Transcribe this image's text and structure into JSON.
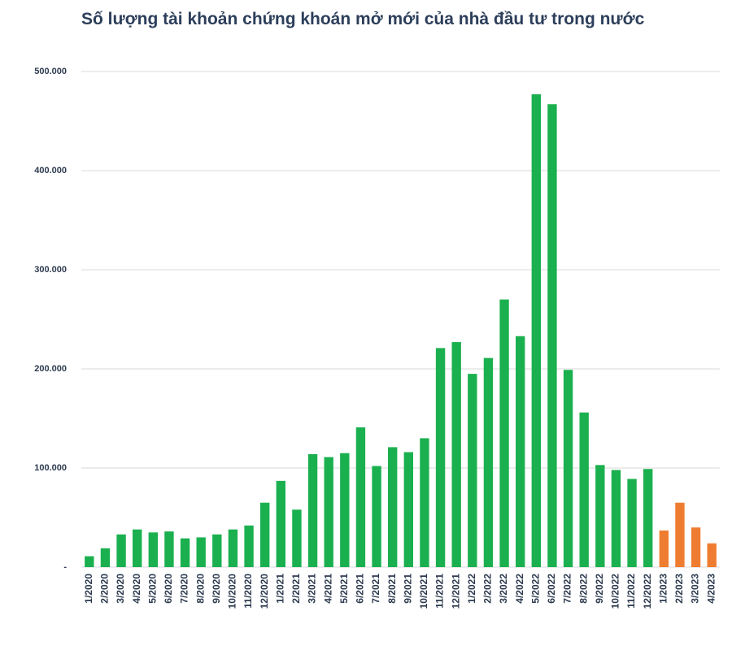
{
  "chart_data": {
    "type": "bar",
    "title": "Số lượng tài khoản chứng khoán mở mới của nhà đầu tư trong nước",
    "categories": [
      "1/2020",
      "2/2020",
      "3/2020",
      "4/2020",
      "5/2020",
      "6/2020",
      "7/2020",
      "8/2020",
      "9/2020",
      "10/2020",
      "11/2020",
      "12/2020",
      "1/2021",
      "2/2021",
      "3/2021",
      "4/2021",
      "5/2021",
      "6/2021",
      "7/2021",
      "8/2021",
      "9/2021",
      "10/2021",
      "11/2021",
      "12/2021",
      "1/2022",
      "2/2022",
      "3/2022",
      "4/2022",
      "5/2022",
      "6/2022",
      "7/2022",
      "8/2022",
      "9/2022",
      "10/2022",
      "11/2022",
      "12/2022",
      "1/2023",
      "2/2023",
      "3/2023",
      "4/2023"
    ],
    "values": [
      11000,
      19000,
      33000,
      38000,
      35000,
      36000,
      29000,
      30000,
      33000,
      38000,
      42000,
      65000,
      87000,
      58000,
      114000,
      111000,
      115000,
      141000,
      102000,
      121000,
      116000,
      130000,
      221000,
      227000,
      195000,
      211000,
      270000,
      233000,
      477000,
      467000,
      199000,
      156000,
      103000,
      98000,
      89000,
      99000,
      37000,
      65000,
      40000,
      24000
    ],
    "colors": [
      "#1bb04f",
      "#1bb04f",
      "#1bb04f",
      "#1bb04f",
      "#1bb04f",
      "#1bb04f",
      "#1bb04f",
      "#1bb04f",
      "#1bb04f",
      "#1bb04f",
      "#1bb04f",
      "#1bb04f",
      "#1bb04f",
      "#1bb04f",
      "#1bb04f",
      "#1bb04f",
      "#1bb04f",
      "#1bb04f",
      "#1bb04f",
      "#1bb04f",
      "#1bb04f",
      "#1bb04f",
      "#1bb04f",
      "#1bb04f",
      "#1bb04f",
      "#1bb04f",
      "#1bb04f",
      "#1bb04f",
      "#1bb04f",
      "#1bb04f",
      "#1bb04f",
      "#1bb04f",
      "#1bb04f",
      "#1bb04f",
      "#1bb04f",
      "#1bb04f",
      "#ef7d31",
      "#ef7d31",
      "#ef7d31",
      "#ef7d31"
    ],
    "ylim": [
      0,
      500000
    ],
    "yticks": [
      {
        "value": 0,
        "label": "-"
      },
      {
        "value": 100000,
        "label": "100.000"
      },
      {
        "value": 200000,
        "label": "200.000"
      },
      {
        "value": 300000,
        "label": "300.000"
      },
      {
        "value": 400000,
        "label": "400.000"
      },
      {
        "value": 500000,
        "label": "500.000"
      }
    ],
    "grid": true
  }
}
